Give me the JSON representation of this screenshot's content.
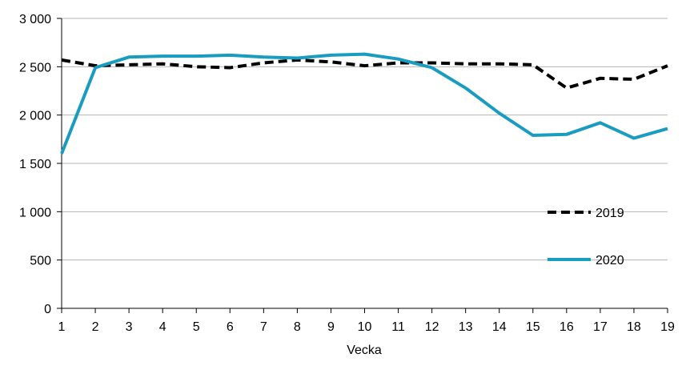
{
  "chart_data": {
    "type": "line",
    "title": "",
    "xlabel": "Vecka",
    "ylabel": "",
    "x": [
      1,
      2,
      3,
      4,
      5,
      6,
      7,
      8,
      9,
      10,
      11,
      12,
      13,
      14,
      15,
      16,
      17,
      18,
      19
    ],
    "x_tick_labels": [
      "1",
      "2",
      "3",
      "4",
      "5",
      "6",
      "7",
      "8",
      "9",
      "10",
      "11",
      "12",
      "13",
      "14",
      "15",
      "16",
      "17",
      "18",
      "19"
    ],
    "ylim": [
      0,
      3000
    ],
    "y_ticks": [
      0,
      500,
      1000,
      1500,
      2000,
      2500,
      3000
    ],
    "y_tick_labels": [
      "0",
      "500",
      "1 000",
      "1 500",
      "2 000",
      "2 500",
      "3 000"
    ],
    "grid": "horizontal",
    "legend_position": "right",
    "series": [
      {
        "name": "2019",
        "color": "#000000",
        "style": "dashed",
        "values": [
          2570,
          2510,
          2520,
          2530,
          2500,
          2490,
          2540,
          2570,
          2550,
          2510,
          2540,
          2540,
          2530,
          2530,
          2520,
          2280,
          2380,
          2370,
          2510
        ]
      },
      {
        "name": "2020",
        "color": "#1a9bc0",
        "style": "solid",
        "values": [
          1600,
          2490,
          2600,
          2610,
          2610,
          2620,
          2600,
          2590,
          2620,
          2630,
          2580,
          2490,
          2280,
          2020,
          1790,
          1800,
          1920,
          1760,
          1860
        ]
      }
    ]
  }
}
